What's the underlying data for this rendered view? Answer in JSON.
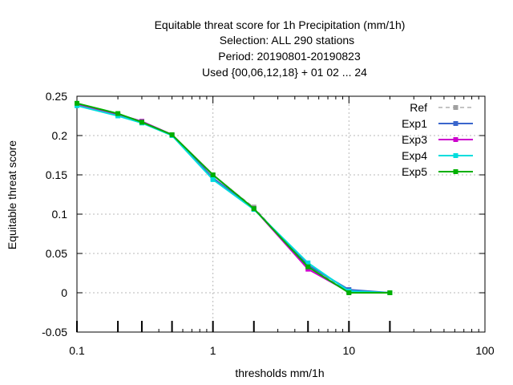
{
  "chart_data": {
    "type": "line",
    "title_lines": [
      "Equitable threat score  for 1h Precipitation (mm/1h)",
      "Selection: ALL     290 stations",
      "Period: 20190801-20190823",
      "Used {00,06,12,18} + 01 02 ... 24"
    ],
    "xlabel": "thresholds mm/1h",
    "ylabel": "Equitable threat score",
    "x_scale": "log",
    "xlim": [
      0.1,
      100
    ],
    "ylim": [
      -0.05,
      0.25
    ],
    "x_ticks": [
      {
        "value": 0.1,
        "label": "0.1"
      },
      {
        "value": 1,
        "label": "1"
      },
      {
        "value": 10,
        "label": "10"
      },
      {
        "value": 100,
        "label": "100"
      }
    ],
    "y_ticks": [
      {
        "value": -0.05,
        "label": "-0.05"
      },
      {
        "value": 0,
        "label": "0"
      },
      {
        "value": 0.05,
        "label": "0.05"
      },
      {
        "value": 0.1,
        "label": "0.1"
      },
      {
        "value": 0.15,
        "label": "0.15"
      },
      {
        "value": 0.2,
        "label": "0.2"
      },
      {
        "value": 0.25,
        "label": "0.25"
      }
    ],
    "grid": true,
    "legend_position": "top-right",
    "x": [
      0.1,
      0.2,
      0.3,
      0.5,
      1,
      2,
      5,
      10,
      20
    ],
    "sample_marks_at": [
      0.1,
      0.2,
      0.3,
      0.5,
      1,
      2,
      5,
      10,
      20
    ],
    "series": [
      {
        "name": "Ref",
        "color": "#a0a0a0",
        "dashed": true,
        "values": [
          0.24,
          0.227,
          0.218,
          0.201,
          0.149,
          0.109,
          0.033,
          0.002,
          0.0
        ]
      },
      {
        "name": "Exp1",
        "color": "#3a66cc",
        "dashed": false,
        "values": [
          0.24,
          0.227,
          0.218,
          0.201,
          0.146,
          0.107,
          0.035,
          0.004,
          0.0
        ]
      },
      {
        "name": "Exp3",
        "color": "#cc00cc",
        "dashed": false,
        "values": [
          0.24,
          0.227,
          0.218,
          0.201,
          0.15,
          0.107,
          0.03,
          0.001,
          0.0
        ]
      },
      {
        "name": "Exp4",
        "color": "#00dddd",
        "dashed": false,
        "values": [
          0.238,
          0.225,
          0.216,
          0.2,
          0.144,
          0.106,
          0.038,
          0.002,
          0.0
        ]
      },
      {
        "name": "Exp5",
        "color": "#00b000",
        "dashed": false,
        "values": [
          0.241,
          0.228,
          0.217,
          0.201,
          0.15,
          0.107,
          0.033,
          0.0,
          0.0
        ]
      }
    ]
  }
}
